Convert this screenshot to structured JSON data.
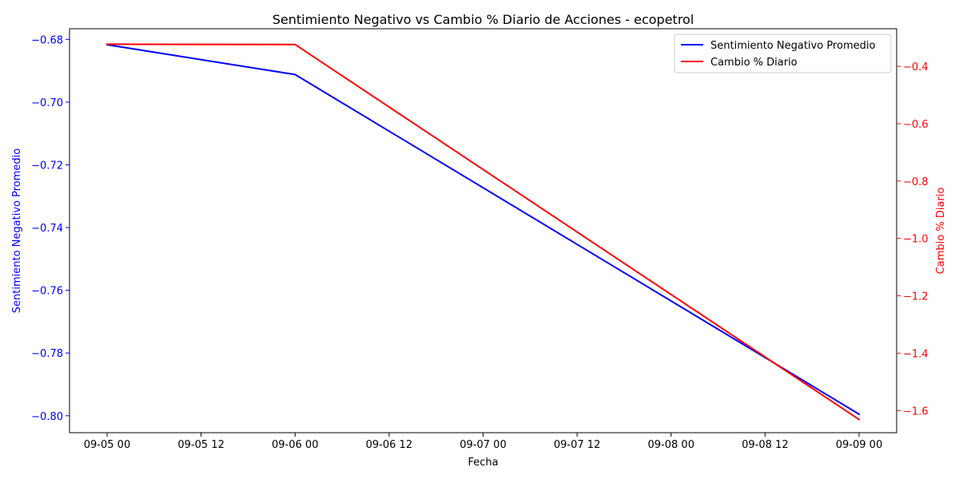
{
  "chart_data": {
    "type": "line",
    "title": "Sentimiento Negativo vs Cambio % Diario de Acciones - ecopetrol",
    "xlabel": "Fecha",
    "ylabel_left": "Sentimiento Negativo Promedio",
    "ylabel_right": "Cambio % Diario",
    "x": [
      "2024-09-05",
      "2024-09-06",
      "2024-09-09"
    ],
    "x_ticks": [
      "09-05 00",
      "09-05 12",
      "09-06 00",
      "09-06 12",
      "09-07 00",
      "09-07 12",
      "09-08 00",
      "09-08 12",
      "09-09 00"
    ],
    "y_left_ticks": [
      "−0.68",
      "−0.70",
      "−0.72",
      "−0.74",
      "−0.76",
      "−0.78",
      "−0.80"
    ],
    "y_right_ticks": [
      "−0.4",
      "−0.6",
      "−0.8",
      "−1.0",
      "−1.2",
      "−1.4",
      "−1.6"
    ],
    "ylim_left": [
      -0.8054,
      -0.6766
    ],
    "ylim_right": [
      -1.6771,
      -0.2691
    ],
    "series": [
      {
        "name": "Sentimiento Negativo Promedio",
        "axis": "left",
        "color": "#0000ff",
        "values": [
          -0.6817,
          -0.6912,
          -0.7995
        ]
      },
      {
        "name": "Cambio % Diario",
        "axis": "right",
        "color": "#ff0000",
        "values": [
          -0.3231,
          -0.324,
          -1.6311
        ]
      }
    ],
    "legend": "top-right",
    "grid": false
  }
}
